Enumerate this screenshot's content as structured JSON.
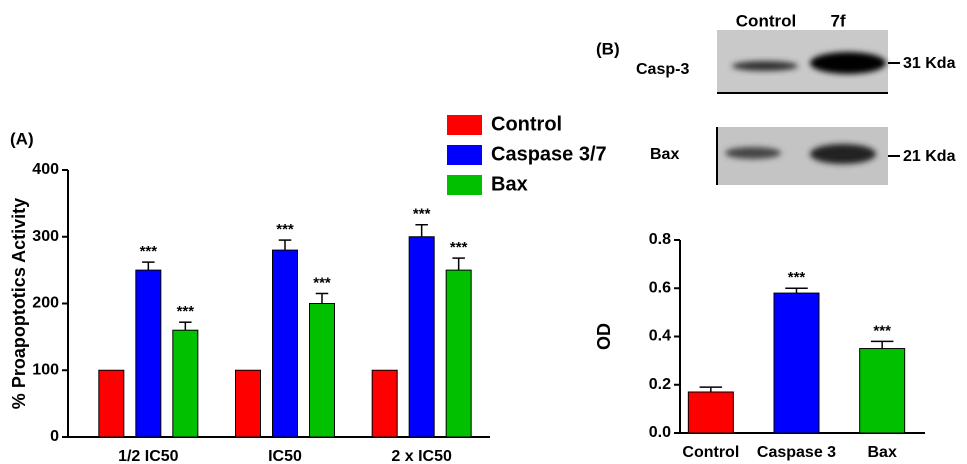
{
  "chart_data": [
    {
      "type": "bar",
      "label": "(A)",
      "y_label": "% Proapoptotics Activity",
      "categories": [
        "1/2 IC50",
        "IC50",
        "2 x IC50"
      ],
      "series": [
        {
          "name": "Control",
          "color": "#ff0000",
          "values": [
            100,
            100,
            100
          ]
        },
        {
          "name": "Caspase 3/7",
          "color": "#0000ff",
          "values": [
            250,
            280,
            300
          ],
          "errors": [
            12,
            15,
            18
          ],
          "annotations": [
            "***",
            "***",
            "***"
          ]
        },
        {
          "name": "Bax",
          "color": "#00c000",
          "values": [
            160,
            200,
            250
          ],
          "errors": [
            12,
            15,
            18
          ],
          "annotations": [
            "***",
            "***",
            "***"
          ]
        }
      ],
      "ylim": [
        0,
        400
      ],
      "yticks": [
        0,
        100,
        200,
        300,
        400
      ],
      "legend": "top-right"
    },
    {
      "type": "bar",
      "y_label": "OD",
      "categories": [
        "Control",
        "Caspase 3",
        "Bax"
      ],
      "values": [
        0.17,
        0.58,
        0.35
      ],
      "errors": [
        0.02,
        0.02,
        0.03
      ],
      "annotations": [
        null,
        "***",
        "***"
      ],
      "colors": [
        "#ff0000",
        "#0000ff",
        "#00c000"
      ],
      "ylim": [
        0,
        0.8
      ],
      "yticks": [
        {
          "value": 0,
          "label": "0.0"
        },
        0.2,
        0.4,
        0.6,
        0.8
      ]
    }
  ],
  "blot": {
    "label": "(B)",
    "lanes": [
      "Control",
      "7f"
    ],
    "rows": [
      {
        "protein": "Casp-3",
        "size": "31 Kda"
      },
      {
        "protein": "Bax",
        "size": "21 Kda"
      }
    ]
  }
}
